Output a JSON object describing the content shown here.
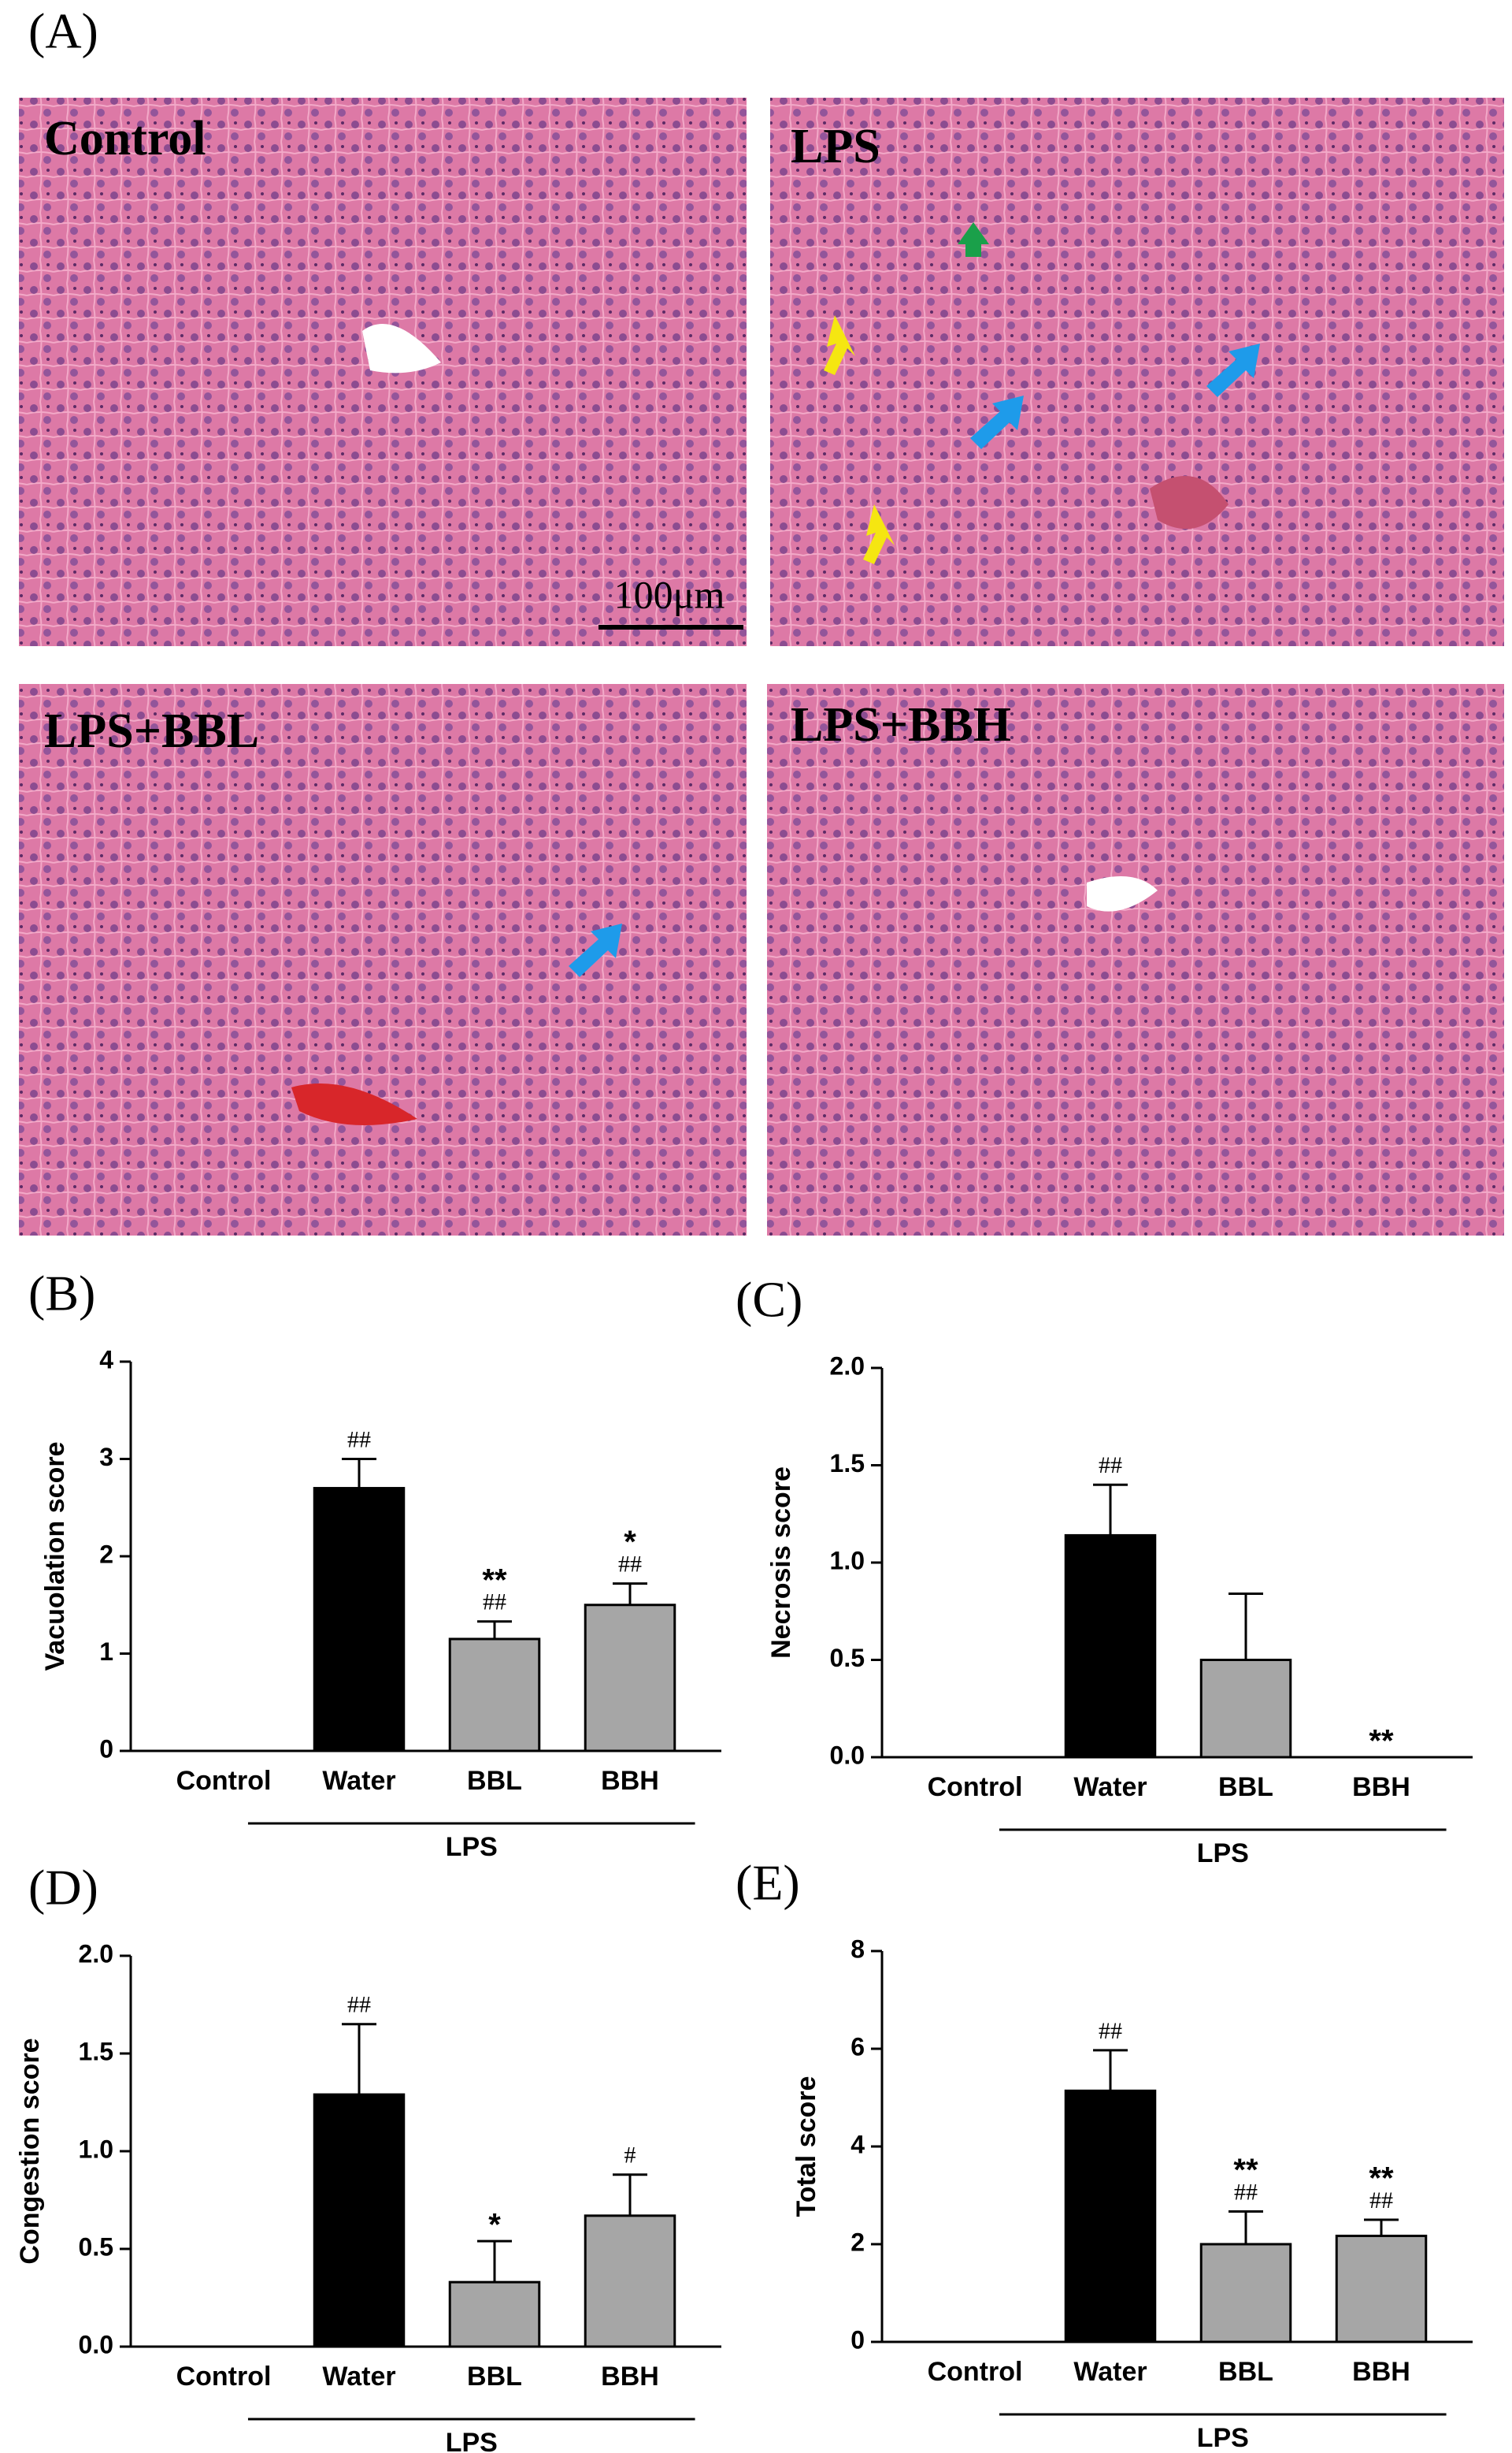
{
  "figure": {
    "label": "(A)",
    "images": [
      {
        "label": "Control"
      },
      {
        "label": "LPS"
      },
      {
        "label": "LPS+BBL"
      },
      {
        "label": "LPS+BBH"
      }
    ],
    "scale_bar": "100μm"
  },
  "chart_data": [
    {
      "type": "bar",
      "panel": "(B)",
      "y_label": "Vacuolation score",
      "categories": [
        "Control",
        "Water",
        "BBL",
        "BBH"
      ],
      "group_label": "LPS",
      "values": [
        0,
        2.7,
        1.15,
        1.5
      ],
      "errors": [
        0,
        0.3,
        0.18,
        0.22
      ],
      "colors": [
        "#000000",
        "#000000",
        "#a6a6a6",
        "#a6a6a6"
      ],
      "hash_labels": [
        null,
        "##",
        "##",
        "##"
      ],
      "star_labels": [
        null,
        null,
        "**",
        "*"
      ],
      "ylim": [
        0,
        4
      ],
      "yticks": [
        0,
        1,
        2,
        3,
        4
      ]
    },
    {
      "type": "bar",
      "panel": "(C)",
      "y_label": "Necrosis score",
      "categories": [
        "Control",
        "Water",
        "BBL",
        "BBH"
      ],
      "group_label": "LPS",
      "values": [
        0,
        1.14,
        0.5,
        0
      ],
      "errors": [
        0,
        0.26,
        0.34,
        0
      ],
      "colors": [
        "#000000",
        "#000000",
        "#a6a6a6",
        "#a6a6a6"
      ],
      "hash_labels": [
        null,
        "##",
        null,
        null
      ],
      "star_labels": [
        null,
        null,
        null,
        "**"
      ],
      "ylim": [
        0,
        2
      ],
      "yticks": [
        {
          "value": 0,
          "label": "0.0"
        },
        {
          "value": 0.5,
          "label": "0.5"
        },
        {
          "value": 1,
          "label": "1.0"
        },
        {
          "value": 1.5,
          "label": "1.5"
        },
        {
          "value": 2,
          "label": "2.0"
        }
      ]
    },
    {
      "type": "bar",
      "panel": "(D)",
      "y_label": "Congestion score",
      "categories": [
        "Control",
        "Water",
        "BBL",
        "BBH"
      ],
      "group_label": "LPS",
      "values": [
        0,
        1.29,
        0.33,
        0.67
      ],
      "errors": [
        0,
        0.36,
        0.21,
        0.21
      ],
      "colors": [
        "#000000",
        "#000000",
        "#a6a6a6",
        "#a6a6a6"
      ],
      "hash_labels": [
        null,
        "##",
        null,
        "#"
      ],
      "star_labels": [
        null,
        null,
        "*",
        null
      ],
      "ylim": [
        0,
        2
      ],
      "yticks": [
        {
          "value": 0,
          "label": "0.0"
        },
        {
          "value": 0.5,
          "label": "0.5"
        },
        {
          "value": 1,
          "label": "1.0"
        },
        {
          "value": 1.5,
          "label": "1.5"
        },
        {
          "value": 2,
          "label": "2.0"
        }
      ]
    },
    {
      "type": "bar",
      "panel": "(E)",
      "y_label": "Total score",
      "categories": [
        "Control",
        "Water",
        "BBL",
        "BBH"
      ],
      "group_label": "LPS",
      "values": [
        0,
        5.14,
        2.0,
        2.17
      ],
      "errors": [
        0,
        0.83,
        0.67,
        0.33
      ],
      "colors": [
        "#000000",
        "#000000",
        "#a6a6a6",
        "#a6a6a6"
      ],
      "hash_labels": [
        null,
        "##",
        "##",
        "##"
      ],
      "star_labels": [
        null,
        null,
        "**",
        "**"
      ],
      "ylim": [
        0,
        8
      ],
      "yticks": [
        0,
        2,
        4,
        6,
        8
      ]
    }
  ]
}
